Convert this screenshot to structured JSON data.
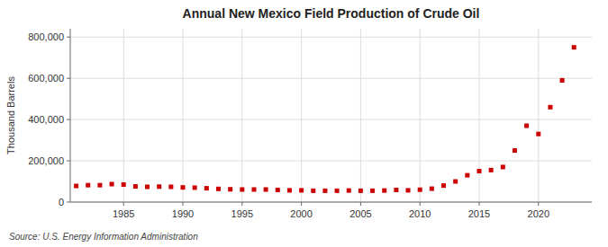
{
  "chart_data": {
    "type": "scatter",
    "title": "Annual New Mexico Field Production of Crude Oil",
    "ylabel": "Thousand Barrels",
    "annotations": [
      "Source: U.S. Energy Information Administration"
    ],
    "x": [
      1981,
      1982,
      1983,
      1984,
      1985,
      1986,
      1987,
      1988,
      1989,
      1990,
      1991,
      1992,
      1993,
      1994,
      1995,
      1996,
      1997,
      1998,
      1999,
      2000,
      2001,
      2002,
      2003,
      2004,
      2005,
      2006,
      2007,
      2008,
      2009,
      2010,
      2011,
      2012,
      2013,
      2014,
      2015,
      2016,
      2017,
      2018,
      2019,
      2020,
      2021,
      2022,
      2023
    ],
    "values": [
      78200,
      82000,
      82000,
      87000,
      85000,
      76000,
      74000,
      75000,
      74000,
      71000,
      70000,
      67000,
      64000,
      62000,
      61000,
      61000,
      61000,
      59000,
      57000,
      57000,
      55000,
      55000,
      55000,
      56000,
      55000,
      55000,
      56000,
      59000,
      57000,
      60000,
      65000,
      80000,
      100000,
      130000,
      150000,
      155000,
      170000,
      250000,
      370000,
      330000,
      460000,
      590000,
      750000
    ],
    "color": "#cc0000",
    "marker": "square",
    "grid": true,
    "xlim": [
      1980.5,
      2024.5
    ],
    "xticks": [
      1985,
      1990,
      1995,
      2000,
      2005,
      2010,
      2015,
      2020
    ],
    "ylim": [
      0,
      840000
    ],
    "yticks": [
      0,
      {
        "value": 200000,
        "label": "200,000"
      },
      {
        "value": 400000,
        "label": "400,000"
      },
      {
        "value": 600000,
        "label": "600,000"
      },
      {
        "value": 800000,
        "label": "800,000"
      }
    ]
  }
}
